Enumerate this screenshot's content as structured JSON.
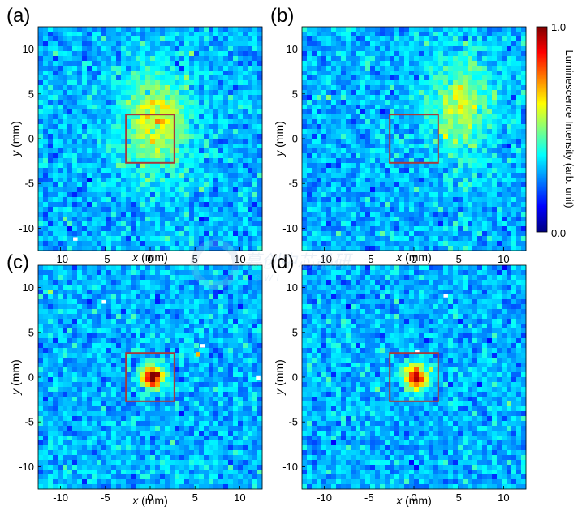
{
  "chart_data": {
    "type": "heatmap",
    "colorbar": {
      "label": "Luminescence Intensity (arb. unit)",
      "max_label": "1.0",
      "min_label": "0.0",
      "range": [
        0.0,
        1.0
      ],
      "colormap": "jet"
    },
    "background": {
      "mean": 0.3,
      "noise": 0.055
    },
    "panels": [
      {
        "label": "(a)",
        "xlabel_var": "x",
        "xlabel_unit": " (mm)",
        "ylabel_var": "y",
        "ylabel_unit": " (mm)",
        "xlim": [
          -12.5,
          12.5
        ],
        "ylim": [
          -12.5,
          12.5
        ],
        "xticks": [
          -10,
          -5,
          0,
          5,
          10
        ],
        "yticks": [
          -10,
          -5,
          0,
          5,
          10
        ],
        "grid": 46,
        "box": {
          "x": [
            -2.7,
            2.7
          ],
          "y": [
            -2.7,
            2.7
          ],
          "color": "#a83a3c"
        },
        "spot": {
          "type": "diffuse",
          "center": [
            0.6,
            1.8
          ],
          "sigma": [
            2.2,
            3.3
          ],
          "peak": 0.63
        },
        "hot_pixels": [
          {
            "x": [
              -8.6,
              -8.1
            ],
            "y": [
              -11.4,
              -11.0
            ],
            "value": 1.0
          }
        ]
      },
      {
        "label": "(b)",
        "xlabel_var": "x",
        "xlabel_unit": " (mm)",
        "ylabel_var": "y",
        "ylabel_unit": " (mm)",
        "xlim": [
          -12.5,
          12.5
        ],
        "ylim": [
          -12.5,
          12.5
        ],
        "xticks": [
          -10,
          -5,
          0,
          5,
          10
        ],
        "yticks": [
          -10,
          -5,
          0,
          5,
          10
        ],
        "grid": 46,
        "box": {
          "x": [
            -2.7,
            2.7
          ],
          "y": [
            -2.7,
            2.7
          ],
          "color": "#a83a3c"
        },
        "spot": {
          "type": "diffuse",
          "center": [
            5.2,
            3.6
          ],
          "sigma": [
            2.0,
            3.2
          ],
          "peak": 0.6
        },
        "hot_pixels": []
      },
      {
        "label": "(c)",
        "xlabel_var": "x",
        "xlabel_unit": " (mm)",
        "ylabel_var": "y",
        "ylabel_unit": " (mm)",
        "xlim": [
          -12.5,
          12.5
        ],
        "ylim": [
          -12.5,
          12.5
        ],
        "xticks": [
          -10,
          -5,
          0,
          5,
          10
        ],
        "yticks": [
          -10,
          -5,
          0,
          5,
          10
        ],
        "grid": 46,
        "box": {
          "x": [
            -2.7,
            2.7
          ],
          "y": [
            -2.7,
            2.7
          ],
          "color": "#a83a3c"
        },
        "spot": {
          "type": "focused",
          "center": [
            0.3,
            0.0
          ],
          "sigma": [
            0.9,
            0.9
          ],
          "peak": 0.97
        },
        "hot_pixels": [
          {
            "x": [
              -5.4,
              -4.9
            ],
            "y": [
              8.2,
              8.6
            ],
            "value": 1.0
          },
          {
            "x": [
              5.6,
              6.1
            ],
            "y": [
              3.3,
              3.7
            ],
            "value": 1.0
          },
          {
            "x": [
              5.1,
              5.6
            ],
            "y": [
              2.3,
              2.8
            ],
            "value": 0.7
          },
          {
            "x": [
              11.8,
              12.3
            ],
            "y": [
              -0.3,
              0.2
            ],
            "value": 1.0
          }
        ]
      },
      {
        "label": "(d)",
        "xlabel_var": "x",
        "xlabel_unit": " (mm)",
        "ylabel_var": "y",
        "ylabel_unit": " (mm)",
        "xlim": [
          -12.5,
          12.5
        ],
        "ylim": [
          -12.5,
          12.5
        ],
        "xticks": [
          -10,
          -5,
          0,
          5,
          10
        ],
        "yticks": [
          -10,
          -5,
          0,
          5,
          10
        ],
        "grid": 46,
        "box": {
          "x": [
            -2.7,
            2.7
          ],
          "y": [
            -2.7,
            2.7
          ],
          "color": "#a83a3c"
        },
        "spot": {
          "type": "focused",
          "center": [
            0.2,
            0.0
          ],
          "sigma": [
            0.9,
            0.9
          ],
          "peak": 0.97
        },
        "hot_pixels": [
          {
            "x": [
              3.3,
              3.8
            ],
            "y": [
              8.9,
              9.3
            ],
            "value": 1.0
          },
          {
            "x": [
              0.1,
              0.6
            ],
            "y": [
              2.6,
              3.0
            ],
            "value": 1.0
          }
        ]
      }
    ]
  },
  "watermark": {
    "text": "慕创中芯晶研",
    "subtext": "CSWI"
  }
}
